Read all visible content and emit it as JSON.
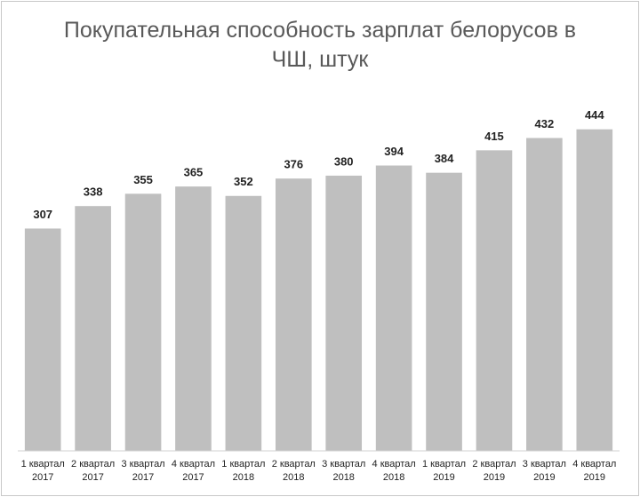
{
  "chart_data": {
    "type": "bar",
    "title": "Покупательная способность зарплат белорусов в ЧШ, штук",
    "categories": [
      "1 квартал 2017",
      "2 квартал 2017",
      "3 квартал 2017",
      "4 квартал 2017",
      "1 квартал 2018",
      "2 квартал 2018",
      "3 квартал 2018",
      "4 квартал 2018",
      "1 квартал 2019",
      "2 квартал 2019",
      "3 квартал 2019",
      "4 квартал 2019"
    ],
    "values": [
      307,
      338,
      355,
      365,
      352,
      376,
      380,
      394,
      384,
      415,
      432,
      444
    ],
    "color": "#bfbfbf",
    "ylim": [
      0,
      500
    ]
  }
}
